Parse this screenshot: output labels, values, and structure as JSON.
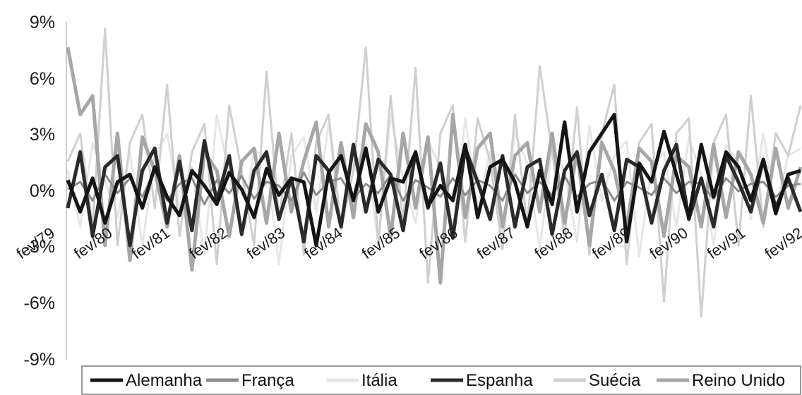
{
  "chart_data": {
    "type": "line",
    "title": "",
    "xlabel": "",
    "ylabel": "",
    "ylim": [
      -0.09,
      0.09
    ],
    "yticks": [
      {
        "value": 0.09,
        "label": "9%"
      },
      {
        "value": 0.06,
        "label": "6%"
      },
      {
        "value": 0.03,
        "label": "3%"
      },
      {
        "value": 0.0,
        "label": "0%"
      },
      {
        "value": -0.03,
        "label": "-3%"
      },
      {
        "value": -0.06,
        "label": "-6%"
      },
      {
        "value": -0.09,
        "label": "-9%"
      }
    ],
    "xticks": [
      "fev/79",
      "fev/80",
      "fev/81",
      "fev/82",
      "fev/83",
      "fev/84",
      "fev/85",
      "fev/86",
      "fev/87",
      "fev/88",
      "fev/89",
      "fev/90",
      "fev/91",
      "fev/92"
    ],
    "grid": false,
    "legend_position": "bottom",
    "colors": {
      "Alemanha": "#141414",
      "França": "#8c8c8c",
      "Itália": "#e6e6e6",
      "Espanha": "#2a2a2a",
      "Suécia": "#cfcfcf",
      "Reino Unido": "#a6a6a6"
    },
    "series": [
      {
        "name": "Alemanha",
        "values": [
          0.005,
          -0.012,
          0.006,
          -0.018,
          0.004,
          0.008,
          -0.01,
          0.012,
          -0.004,
          -0.014,
          0.01,
          0.002,
          -0.008,
          0.009,
          0.0,
          -0.015,
          0.011,
          -0.003,
          0.006,
          0.004,
          -0.03,
          0.009,
          0.018,
          -0.006,
          0.022,
          -0.012,
          0.006,
          0.004,
          0.02,
          -0.009,
          0.002,
          -0.006,
          0.024,
          -0.015,
          0.012,
          0.016,
          0.004,
          -0.02,
          0.01,
          -0.008,
          0.036,
          -0.012,
          0.02,
          0.03,
          0.04,
          -0.028,
          0.014,
          0.004,
          0.031,
          0.008,
          -0.015,
          0.024,
          -0.004,
          0.02,
          0.012,
          -0.006,
          0.016,
          -0.013,
          0.008,
          0.01
        ]
      },
      {
        "name": "França",
        "values": [
          0.0,
          0.004,
          -0.006,
          0.008,
          -0.002,
          0.006,
          -0.004,
          0.01,
          -0.006,
          0.003,
          0.006,
          -0.008,
          0.005,
          -0.002,
          0.007,
          -0.005,
          0.004,
          0.002,
          -0.006,
          0.009,
          -0.003,
          0.004,
          0.006,
          -0.005,
          0.003,
          -0.002,
          0.008,
          -0.006,
          0.005,
          0.001,
          -0.004,
          0.006,
          -0.003,
          0.005,
          0.002,
          -0.006,
          0.008,
          -0.002,
          0.004,
          -0.003,
          0.007,
          -0.004,
          0.003,
          0.005,
          -0.006,
          0.004,
          0.001,
          -0.003,
          0.006,
          -0.002,
          0.004,
          0.003,
          -0.005,
          0.006,
          -0.001,
          0.003,
          0.004,
          -0.004,
          0.002,
          0.003
        ]
      },
      {
        "name": "Itália",
        "values": [
          0.01,
          -0.02,
          0.025,
          0.005,
          -0.015,
          0.02,
          -0.03,
          0.018,
          0.03,
          -0.01,
          0.012,
          -0.035,
          0.04,
          0.008,
          -0.025,
          0.022,
          0.015,
          -0.04,
          0.018,
          0.028,
          -0.012,
          0.035,
          -0.022,
          0.01,
          0.024,
          -0.03,
          0.04,
          0.006,
          -0.018,
          0.026,
          0.012,
          -0.02,
          0.038,
          -0.01,
          0.02,
          -0.025,
          0.03,
          0.014,
          -0.032,
          0.022,
          0.01,
          -0.028,
          0.034,
          -0.006,
          0.018,
          0.026,
          -0.036,
          0.012,
          0.02,
          -0.02,
          0.028,
          0.008,
          -0.03,
          0.024,
          0.014,
          -0.016,
          0.03,
          -0.01,
          0.018,
          0.022
        ]
      },
      {
        "name": "Espanha",
        "values": [
          -0.01,
          0.02,
          -0.025,
          0.012,
          0.018,
          -0.03,
          0.01,
          0.022,
          -0.018,
          0.015,
          -0.022,
          0.026,
          -0.006,
          0.018,
          -0.024,
          0.01,
          0.02,
          -0.016,
          0.006,
          -0.028,
          0.018,
          0.01,
          -0.02,
          0.024,
          -0.012,
          0.016,
          0.008,
          -0.022,
          0.02,
          -0.01,
          0.014,
          -0.026,
          0.022,
          0.004,
          -0.016,
          0.018,
          -0.02,
          0.012,
          0.016,
          -0.024,
          0.01,
          0.02,
          -0.014,
          0.008,
          -0.022,
          0.016,
          0.012,
          -0.018,
          0.01,
          0.024,
          -0.016,
          0.006,
          -0.02,
          0.018,
          0.004,
          -0.012,
          0.016,
          -0.01,
          0.006,
          -0.012
        ]
      },
      {
        "name": "Suécia",
        "values": [
          0.015,
          0.03,
          -0.02,
          0.086,
          -0.03,
          0.025,
          0.04,
          -0.01,
          0.056,
          -0.025,
          0.02,
          0.035,
          -0.04,
          0.045,
          0.01,
          -0.03,
          0.063,
          -0.015,
          0.03,
          -0.035,
          0.025,
          0.04,
          -0.02,
          0.01,
          0.076,
          -0.03,
          0.05,
          -0.018,
          0.065,
          -0.05,
          0.03,
          0.045,
          -0.028,
          0.038,
          0.015,
          -0.032,
          0.04,
          -0.02,
          0.066,
          0.02,
          -0.025,
          0.044,
          -0.035,
          0.03,
          0.056,
          -0.04,
          0.025,
          0.035,
          -0.06,
          0.03,
          0.038,
          -0.068,
          0.025,
          0.04,
          -0.03,
          0.05,
          -0.02,
          0.03,
          0.018,
          0.045
        ]
      },
      {
        "name": "Reino Unido",
        "values": [
          0.076,
          0.04,
          0.05,
          -0.03,
          0.03,
          -0.038,
          0.028,
          0.01,
          -0.02,
          0.018,
          -0.043,
          0.02,
          0.01,
          -0.025,
          0.015,
          0.022,
          -0.018,
          0.03,
          -0.012,
          0.015,
          0.036,
          -0.02,
          0.025,
          -0.015,
          0.035,
          0.02,
          -0.025,
          0.03,
          -0.01,
          0.028,
          -0.05,
          0.04,
          -0.015,
          0.022,
          0.03,
          -0.02,
          0.018,
          0.025,
          -0.012,
          0.03,
          -0.018,
          0.02,
          -0.03,
          0.025,
          0.01,
          -0.02,
          0.022,
          0.015,
          -0.025,
          0.018,
          0.012,
          -0.02,
          0.024,
          -0.015,
          0.02,
          0.008,
          -0.018,
          0.022,
          -0.01,
          0.012
        ]
      }
    ]
  }
}
